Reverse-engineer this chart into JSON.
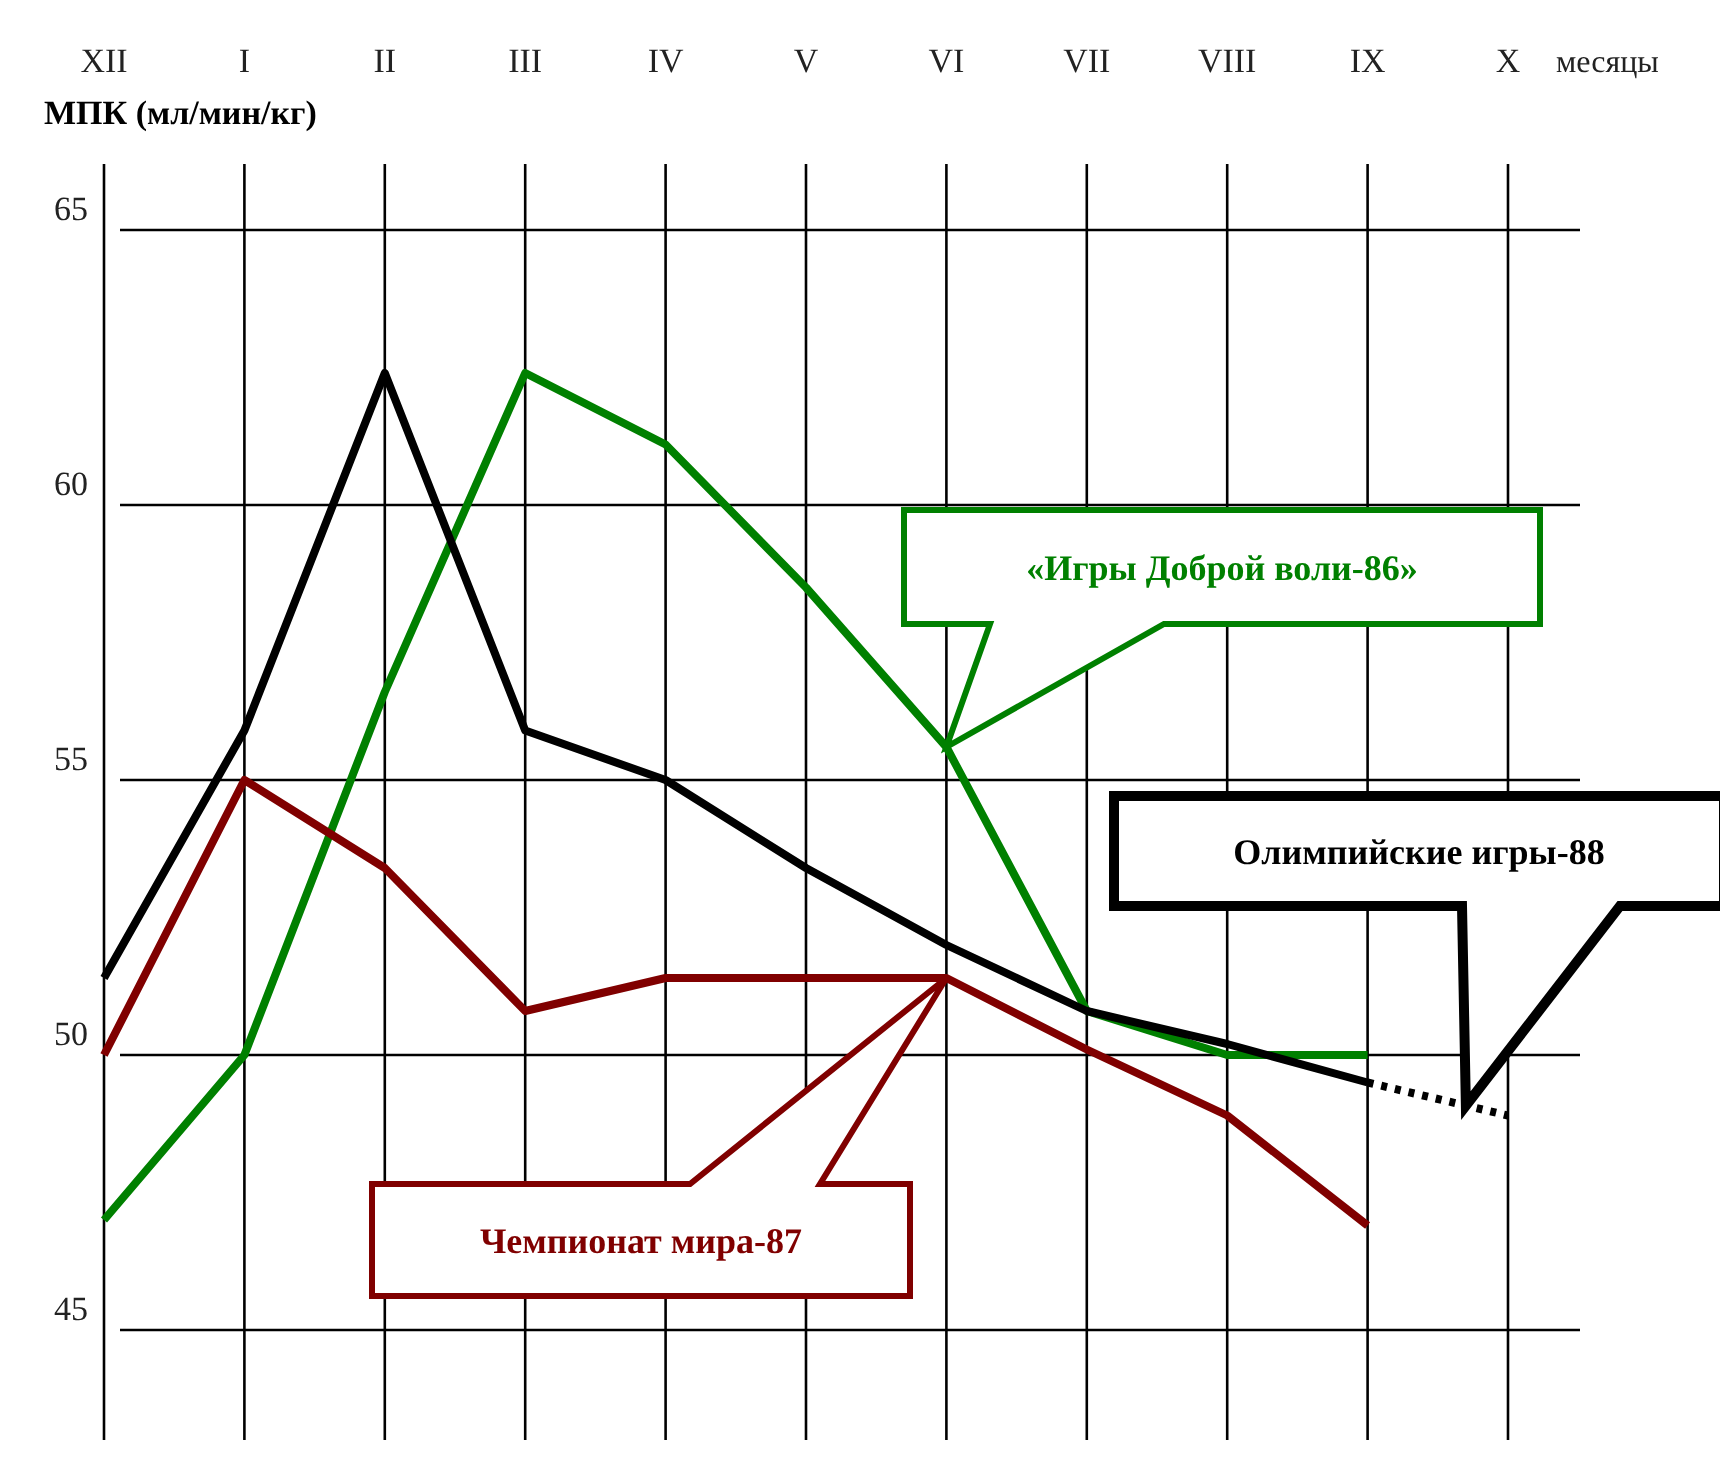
{
  "chart_data": {
    "type": "line",
    "xlabel": "месяцы",
    "ylabel": "МПК (мл/мин/кг)",
    "categories": [
      "XII",
      "I",
      "II",
      "III",
      "IV",
      "V",
      "VI",
      "VII",
      "VIII",
      "IX",
      "X"
    ],
    "ylim": [
      43,
      66.2
    ],
    "yticks": [
      45,
      50,
      55,
      60,
      65
    ],
    "grid": true,
    "legend": false,
    "marker": "none",
    "series": [
      {
        "name": "«Игры Доброй воли-86»",
        "color": "#008000",
        "values": [
          47.0,
          50.0,
          56.6,
          62.4,
          61.1,
          58.5,
          55.6,
          50.8,
          50.0,
          50.0,
          null
        ]
      },
      {
        "name": "Чемпионат мира-87",
        "color": "#800000",
        "values": [
          50.0,
          55.0,
          53.4,
          50.8,
          51.4,
          51.4,
          51.4,
          50.1,
          48.9,
          46.9,
          null
        ]
      },
      {
        "name": "Олимпийские игры-88",
        "color": "#000000",
        "values": [
          51.4,
          55.9,
          62.4,
          55.9,
          55.0,
          53.4,
          52.0,
          50.8,
          50.2,
          49.5,
          null
        ]
      },
      {
        "color": "#000000",
        "line_style": "dotted",
        "values": [
          null,
          null,
          null,
          null,
          null,
          null,
          null,
          null,
          null,
          49.5,
          48.9
        ]
      }
    ]
  }
}
